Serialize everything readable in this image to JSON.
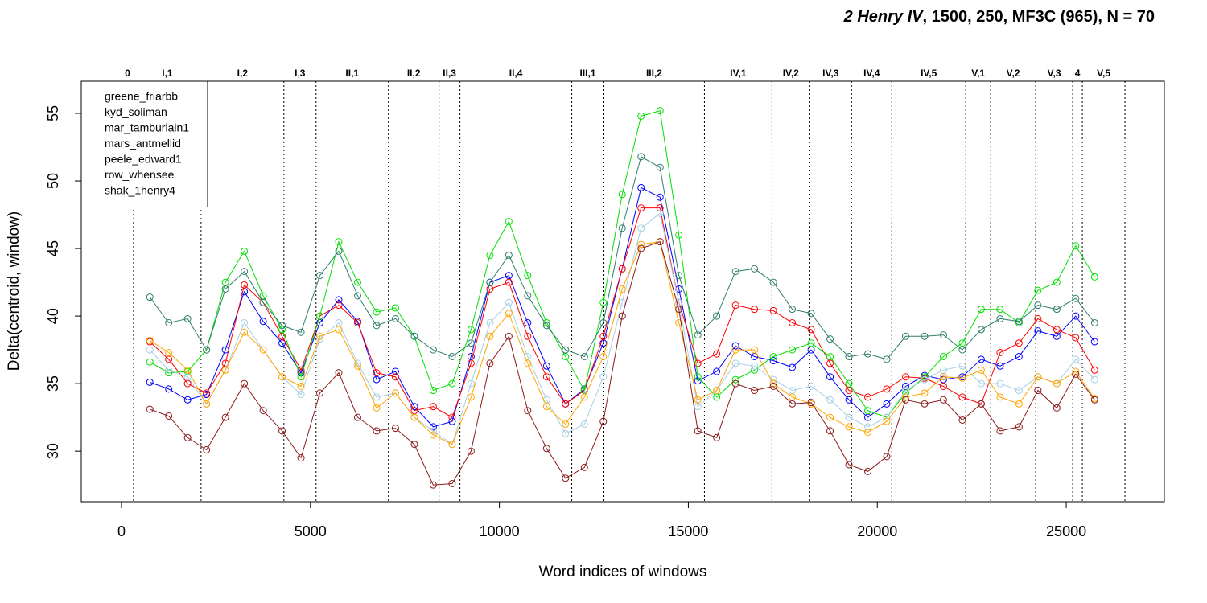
{
  "chart_data": {
    "type": "line",
    "title_italic": "2 Henry IV",
    "title_rest": ", 1500, 250, MF3C (965), N = 70",
    "xlabel": "Word indices of windows",
    "ylabel": "Delta(centroid, window)",
    "xlim": [
      -1064,
      27596
    ],
    "ylim": [
      26.26,
      57.38
    ],
    "xticks": [
      0,
      5000,
      10000,
      15000,
      20000,
      25000
    ],
    "yticks": [
      30,
      35,
      40,
      45,
      50,
      55
    ],
    "legend": "top-left",
    "scenes": [
      {
        "label": "0",
        "end": 319
      },
      {
        "label": "I,1",
        "end": 2106
      },
      {
        "label": "I,2",
        "end": 4298
      },
      {
        "label": "I,3",
        "end": 5149
      },
      {
        "label": "II,1",
        "end": 7064
      },
      {
        "label": "II,2",
        "end": 8404
      },
      {
        "label": "II,3",
        "end": 8957
      },
      {
        "label": "II,4",
        "end": 11915
      },
      {
        "label": "III,1",
        "end": 12766
      },
      {
        "label": "III,2",
        "end": 15426
      },
      {
        "label": "IV,1",
        "end": 17213
      },
      {
        "label": "IV,2",
        "end": 18213
      },
      {
        "label": "IV,3",
        "end": 19319
      },
      {
        "label": "IV,4",
        "end": 20383
      },
      {
        "label": "IV,5",
        "end": 22340
      },
      {
        "label": "V,1",
        "end": 23000
      },
      {
        "label": "V,2",
        "end": 24191
      },
      {
        "label": "V,3",
        "end": 25170
      },
      {
        "label": "4",
        "end": 25426
      },
      {
        "label": "V,5",
        "end": 26553
      }
    ],
    "x": [
      750,
      1250,
      1750,
      2250,
      2750,
      3250,
      3750,
      4250,
      4750,
      5250,
      5750,
      6250,
      6750,
      7250,
      7750,
      8250,
      8750,
      9250,
      9750,
      10250,
      10750,
      11250,
      11750,
      12250,
      12750,
      13250,
      13750,
      14250,
      14750,
      15250,
      15750,
      16250,
      16750,
      17250,
      17750,
      18250,
      18750,
      19250,
      19750,
      20250,
      20750,
      21250,
      21750,
      22250,
      22750,
      23250,
      23750,
      24250,
      24750,
      25250,
      25750
    ],
    "series": [
      {
        "name": "greene_friarbb",
        "color": "#0000ff",
        "values": [
          35.1,
          34.6,
          33.8,
          34.2,
          37.5,
          41.8,
          39.6,
          38,
          35.8,
          39.5,
          41.2,
          39.6,
          35.3,
          35.9,
          33.3,
          31.8,
          32.2,
          37.0,
          42.5,
          43.0,
          39.5,
          36.3,
          33.5,
          34.6,
          38.0,
          43.5,
          49.5,
          48.8,
          42.0,
          35.2,
          35.9,
          37.8,
          37.0,
          36.7,
          36.2,
          37.5,
          35.5,
          33.8,
          32.5,
          33.5,
          34.8,
          35.6,
          35.3,
          35.5,
          36.8,
          36.3,
          37.0,
          38.9,
          38.5,
          40.0,
          38.1
        ]
      },
      {
        "name": "kyd_soliman",
        "color": "#ff0000",
        "values": [
          38.1,
          36.8,
          35.0,
          34.3,
          36.5,
          42.3,
          41,
          38.5,
          36.0,
          40.0,
          40.8,
          39.5,
          35.8,
          35.5,
          33.0,
          33.3,
          32.5,
          36.5,
          42,
          42.5,
          38.5,
          35.5,
          33.5,
          34.5,
          38.5,
          43.5,
          48,
          48,
          41,
          36.5,
          37.2,
          40.8,
          40.5,
          40.4,
          39.5,
          39.0,
          36.5,
          34.5,
          34.0,
          34.6,
          35.5,
          35.4,
          34.8,
          34.0,
          33.5,
          37.3,
          38.0,
          39.8,
          39.0,
          38.4,
          36.0
        ]
      },
      {
        "name": "mar_tamburlain1",
        "color": "#00e000",
        "values": [
          36.6,
          35.8,
          35.9,
          37.5,
          42.5,
          44.8,
          41.5,
          39.0,
          35.5,
          40,
          45.5,
          42.5,
          40.3,
          40.6,
          38.5,
          34.5,
          35.0,
          39.0,
          44.5,
          47,
          43,
          39.5,
          37.0,
          34.5,
          41,
          49,
          54.8,
          55.2,
          46,
          35.5,
          34.0,
          35.3,
          36.0,
          37.0,
          37.5,
          38.0,
          37.0,
          35.0,
          33.0,
          32.5,
          34.3,
          35.5,
          37.0,
          38.0,
          40.5,
          40.5,
          39.5,
          41.9,
          42.5,
          45.2,
          42.9
        ]
      },
      {
        "name": "mars_antmellid",
        "color": "#2e7d6b",
        "values": [
          41.4,
          39.5,
          39.8,
          37.5,
          42.0,
          43.3,
          41.0,
          39.3,
          38.8,
          43.0,
          44.8,
          41.5,
          39.3,
          39.8,
          38.5,
          37.5,
          37.0,
          38.0,
          42.5,
          44.5,
          41.5,
          39.3,
          37.5,
          37.0,
          39.5,
          46.5,
          51.8,
          51.0,
          43.0,
          38.6,
          40.0,
          43.3,
          43.5,
          42.5,
          40.5,
          40.2,
          38.3,
          37.0,
          37.2,
          36.8,
          38.5,
          38.5,
          38.6,
          37.5,
          39.0,
          39.8,
          39.6,
          40.8,
          40.5,
          41.3,
          39.5
        ]
      },
      {
        "name": "peele_edward1",
        "color": "#a6cee3",
        "values": [
          37.5,
          36.0,
          35.5,
          33.5,
          36.0,
          39.5,
          37.5,
          35.5,
          34.2,
          38.3,
          39.5,
          36.5,
          34.0,
          34.3,
          32.5,
          31.5,
          30.5,
          35.0,
          39.5,
          41.0,
          37.0,
          33.8,
          31.3,
          32.0,
          35.5,
          41,
          46.5,
          47.6,
          41.0,
          33.3,
          34.5,
          36.5,
          36.3,
          35.3,
          34.5,
          34.8,
          33.8,
          32.5,
          31.8,
          32.5,
          34.5,
          35.3,
          36.0,
          36.3,
          35.0,
          35.0,
          34.5,
          35.5,
          35.0,
          36.8,
          35.3
        ]
      },
      {
        "name": "row_whensee",
        "color": "#ffa500",
        "values": [
          38.2,
          37.3,
          36.0,
          33.5,
          36.0,
          38.8,
          37.5,
          35.5,
          34.8,
          38.5,
          39.0,
          36.3,
          33.2,
          34.3,
          32.5,
          31.2,
          30.5,
          34.0,
          38.5,
          40.2,
          36.5,
          33.3,
          32.0,
          34.0,
          37.0,
          42,
          45.3,
          45.5,
          39.5,
          33.8,
          34.5,
          37.5,
          37.5,
          35.0,
          34.0,
          33.5,
          32.5,
          31.8,
          31.4,
          32.2,
          34.0,
          34.3,
          35.5,
          35.4,
          36.0,
          34.0,
          33.5,
          35.5,
          35.0,
          35.9,
          33.9
        ]
      },
      {
        "name": "shak_1henry4",
        "color": "#8b1a1a",
        "values": [
          33.1,
          32.6,
          31.0,
          30.1,
          32.5,
          35.0,
          33.0,
          31.5,
          29.5,
          34.3,
          35.8,
          32.5,
          31.5,
          31.7,
          30.5,
          27.5,
          27.6,
          30.0,
          36.5,
          38.5,
          33,
          30.2,
          28.0,
          28.8,
          32.2,
          40,
          45,
          45.5,
          40.5,
          31.5,
          31.0,
          35.0,
          34.5,
          34.8,
          33.5,
          33.6,
          31.5,
          29.0,
          28.5,
          29.6,
          33.8,
          33.5,
          33.8,
          32.3,
          33.5,
          31.5,
          31.8,
          34.5,
          33.2,
          35.7,
          33.8
        ]
      }
    ]
  }
}
